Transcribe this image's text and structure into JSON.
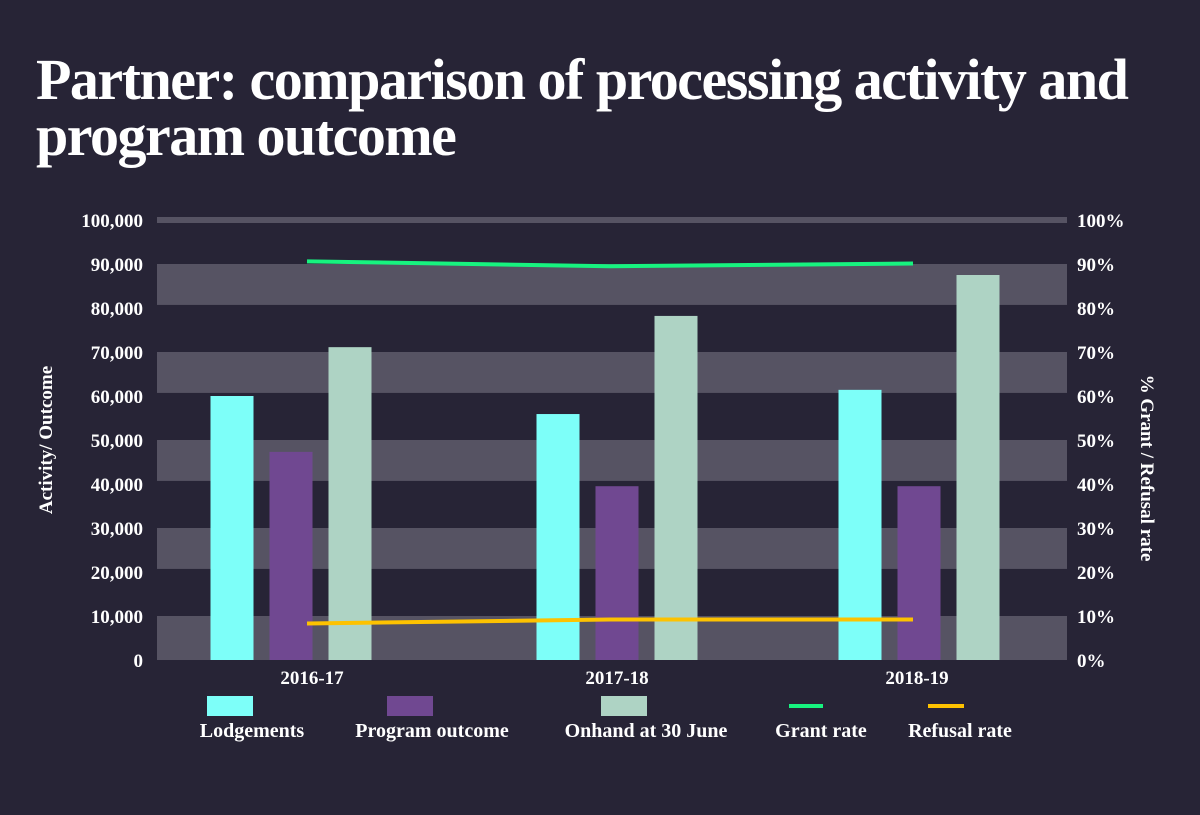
{
  "chart_data": {
    "type": "bar",
    "title": "Partner: comparison of processing activity and program outcome",
    "xlabel": "",
    "ylabel": "Activity/ Outcome",
    "y2label": "% Grant / Refusal rate",
    "categories": [
      "2016-17",
      "2017-18",
      "2018-19"
    ],
    "ylim": [
      0,
      100000
    ],
    "y2lim": [
      0,
      100
    ],
    "yticks": [
      "0",
      "10,000",
      "20,000",
      "30,000",
      "40,000",
      "50,000",
      "60,000",
      "70,000",
      "80,000",
      "90,000",
      "100,000"
    ],
    "y2ticks": [
      "0%",
      "10%",
      "20%",
      "30%",
      "40%",
      "50%",
      "60%",
      "70%",
      "80%",
      "90%",
      "100%"
    ],
    "grid": "alternating horizontal bands",
    "legend_position": "bottom",
    "series": [
      {
        "name": "Lodgements",
        "type": "bar",
        "axis": "left",
        "color": "#7dfff9",
        "values": [
          60000,
          55900,
          61400
        ]
      },
      {
        "name": "Program outcome",
        "type": "bar",
        "axis": "left",
        "color": "#704891",
        "values": [
          47300,
          39500,
          39500
        ]
      },
      {
        "name": "Onhand at 30 June",
        "type": "bar",
        "axis": "left",
        "color": "#aed3c4",
        "values": [
          71100,
          78200,
          87500
        ]
      },
      {
        "name": "Grant rate",
        "type": "line",
        "axis": "right",
        "color": "#17f37f",
        "values": [
          90.6,
          89.5,
          90.1
        ]
      },
      {
        "name": "Refusal rate",
        "type": "line",
        "axis": "right",
        "color": "#fdc200",
        "values": [
          8.3,
          9.2,
          9.2
        ]
      }
    ]
  },
  "colors": {
    "background": "#272436",
    "band": "#565363",
    "text": "#ffffff"
  }
}
